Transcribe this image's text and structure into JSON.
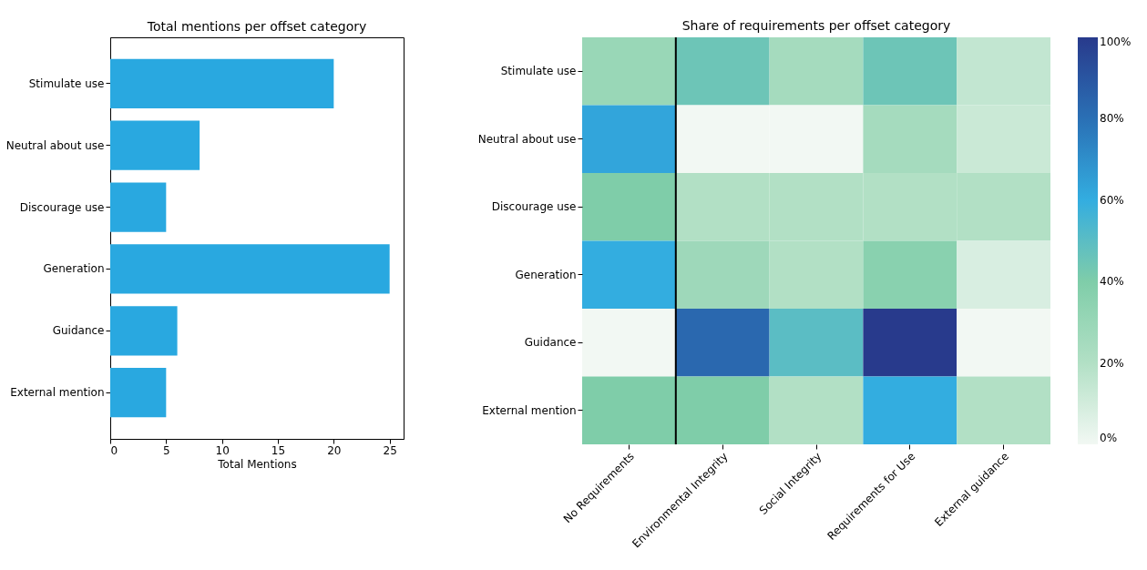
{
  "chart_data": [
    {
      "type": "bar",
      "orientation": "horizontal",
      "title": "Total mentions per offset category",
      "xlabel": "Total Mentions",
      "categories": [
        "Stimulate use",
        "Neutral about use",
        "Discourage use",
        "Generation",
        "Guidance",
        "External mention"
      ],
      "values": [
        20,
        8,
        5,
        25,
        6,
        5
      ],
      "color": "#29a8e0",
      "xlim": [
        0,
        26.25
      ],
      "xticks": [
        0,
        5,
        10,
        15,
        20,
        25
      ],
      "grid": false
    },
    {
      "type": "heatmap",
      "title": "Share of requirements per offset category",
      "categories": [
        "No Requirements",
        "Environmental Integrity",
        "Social Integrity",
        "Requirements for Use",
        "External guidance"
      ],
      "y_categories": [
        "Stimulate use",
        "Neutral about use",
        "Discourage use",
        "Generation",
        "Guidance",
        "External mention"
      ],
      "cells": [
        [
          30,
          45,
          25,
          45,
          15
        ],
        [
          62.5,
          0,
          0,
          25,
          12.5
        ],
        [
          40,
          20,
          20,
          20,
          20
        ],
        [
          60,
          28,
          20,
          36,
          8
        ],
        [
          0,
          83,
          50,
          100,
          0
        ],
        [
          40,
          40,
          20,
          60,
          20
        ]
      ],
      "clim": [
        0,
        100
      ],
      "cticks": [
        {
          "value": 0,
          "label": "0%"
        },
        {
          "value": 20,
          "label": "20%"
        },
        {
          "value": 40,
          "label": "40%"
        },
        {
          "value": 60,
          "label": "60%"
        },
        {
          "value": 80,
          "label": "80%"
        },
        {
          "value": 100,
          "label": "100%"
        }
      ]
    }
  ]
}
